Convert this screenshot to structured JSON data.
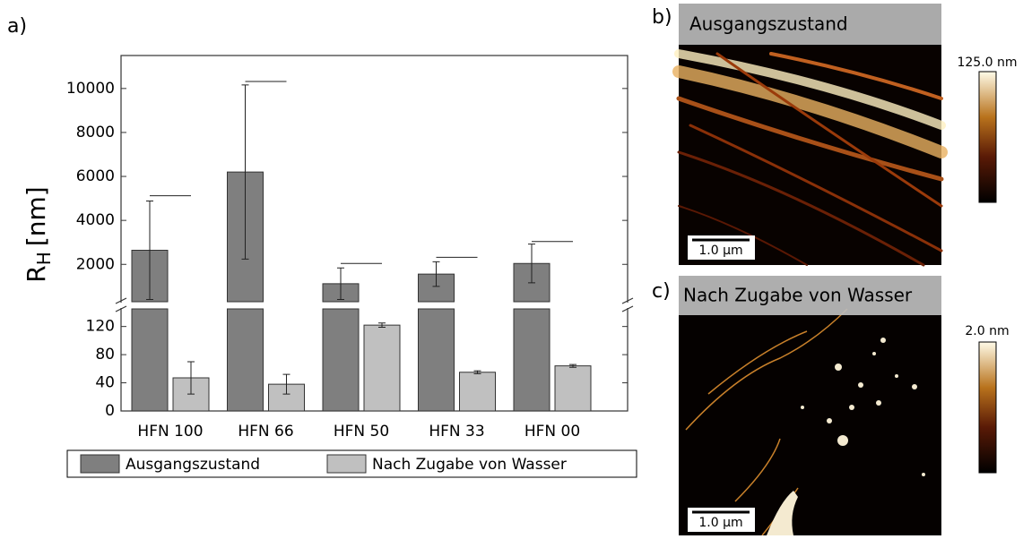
{
  "chart_data": {
    "type": "bar",
    "ylabel_parts": [
      "R",
      "H",
      "[nm]"
    ],
    "categories": [
      "HFN 100",
      "HFN 66",
      "HFN 50",
      "HFN 33",
      "HFN 00"
    ],
    "ylim": [
      0,
      145
    ],
    "yticks": [
      0,
      40,
      80,
      120
    ],
    "ylim_upper": [
      300,
      11500
    ],
    "yticks_upper": [
      2000,
      4000,
      6000,
      8000,
      10000
    ],
    "series": [
      {
        "name": "Ausgangszustand",
        "color": "#7f7f7f",
        "axis": "upper",
        "values": [
          2640,
          6200,
          1120,
          1560,
          2040
        ],
        "errors": [
          2240,
          3960,
          720,
          560,
          880
        ],
        "max_values": [
          5120,
          10320,
          2040,
          2320,
          3040
        ]
      },
      {
        "name": "Nach Zugabe von Wasser",
        "color": "#c0c0c0",
        "axis": "lower",
        "values": [
          47,
          38,
          122,
          55,
          64
        ],
        "errors": [
          23,
          14,
          3,
          2,
          2
        ]
      }
    ]
  },
  "panel_labels": [
    "a)",
    "b)",
    "c)"
  ],
  "images": [
    {
      "caption": "Ausgangszustand",
      "colorbar_max": "125.0 nm",
      "scale_bar": "1.0 µm"
    },
    {
      "caption": "Nach Zugabe von Wasser",
      "colorbar_max": "2.0 nm",
      "scale_bar": "1.0 µm"
    }
  ]
}
